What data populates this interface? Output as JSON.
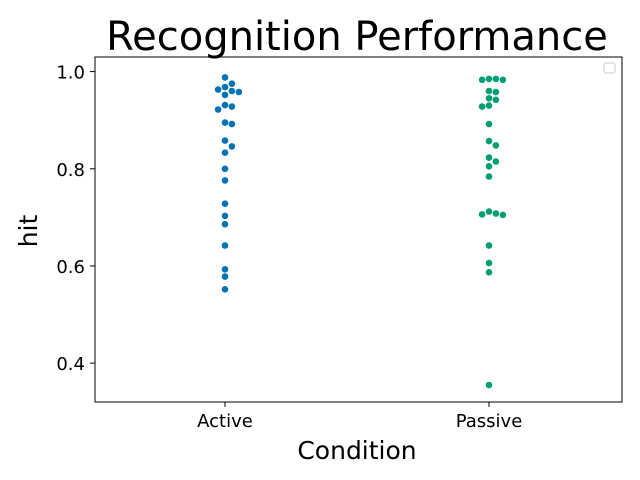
{
  "chart_data": {
    "type": "scatter",
    "subtype": "swarm",
    "title": "Recognition Performance",
    "xlabel": "Condition",
    "ylabel": "hit",
    "categories": [
      "Active",
      "Passive"
    ],
    "ylim": [
      0.32,
      1.03
    ],
    "yticks": [
      "0.4",
      "0.6",
      "0.8",
      "1.0"
    ],
    "grid": false,
    "legend": {
      "placement": "top-right",
      "entries": []
    },
    "series": [
      {
        "category": "Active",
        "color": "#0173b2",
        "values": [
          0.988,
          0.975,
          0.968,
          0.963,
          0.96,
          0.958,
          0.952,
          0.931,
          0.928,
          0.922,
          0.895,
          0.892,
          0.858,
          0.846,
          0.833,
          0.8,
          0.776,
          0.728,
          0.703,
          0.686,
          0.642,
          0.593,
          0.578,
          0.552
        ]
      },
      {
        "category": "Passive",
        "color": "#029e73",
        "values": [
          0.985,
          0.985,
          0.983,
          0.983,
          0.96,
          0.958,
          0.945,
          0.942,
          0.93,
          0.928,
          0.892,
          0.857,
          0.848,
          0.823,
          0.815,
          0.805,
          0.784,
          0.712,
          0.708,
          0.706,
          0.705,
          0.642,
          0.606,
          0.587,
          0.355
        ]
      }
    ]
  }
}
